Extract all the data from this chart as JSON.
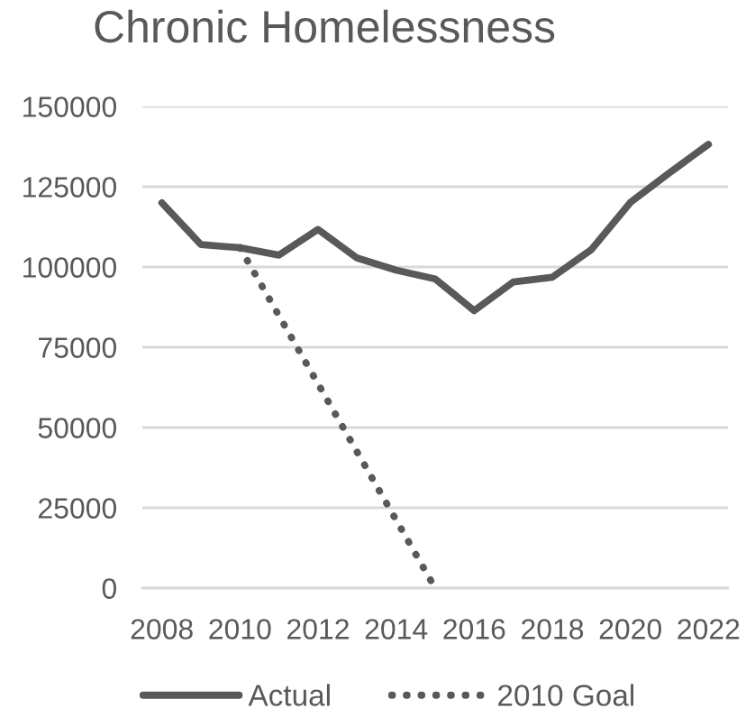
{
  "chart_data": {
    "type": "line",
    "title": "Chronic Homelessness",
    "x": [
      2008,
      2009,
      2010,
      2011,
      2012,
      2013,
      2014,
      2015,
      2016,
      2017,
      2018,
      2019,
      2020,
      2021,
      2022
    ],
    "series": [
      {
        "name": "Actual",
        "color": "#595959",
        "line_style": "solid",
        "values": [
          120000,
          107000,
          106000,
          103700,
          111700,
          102800,
          99000,
          96300,
          86400,
          95300,
          96800,
          105400,
          120100,
          129300,
          138200
        ]
      },
      {
        "name": "2010 Goal",
        "color": "#595959",
        "line_style": "dotted",
        "x": [
          2010,
          2015
        ],
        "values": [
          106000,
          0
        ]
      }
    ],
    "xlim": [
      2007.5,
      2022.5
    ],
    "xticks": [
      2008,
      2010,
      2012,
      2014,
      2016,
      2018,
      2020,
      2022
    ],
    "ylim": [
      0,
      150000
    ],
    "yticks": [
      0,
      25000,
      50000,
      75000,
      100000,
      125000,
      150000
    ],
    "grid": "y",
    "legend": "bottom"
  }
}
